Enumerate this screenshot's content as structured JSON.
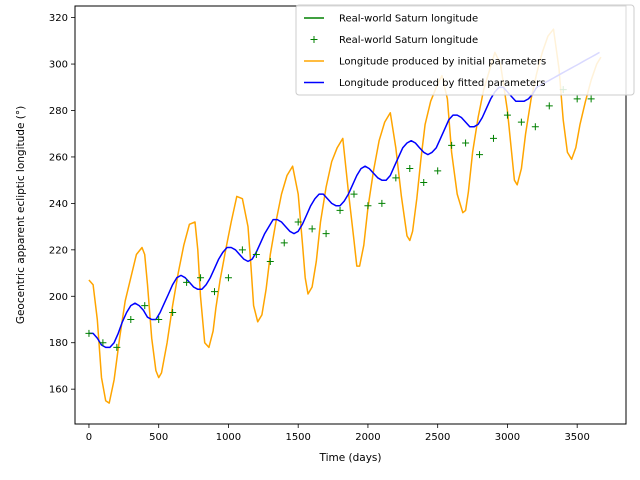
{
  "chart_data": {
    "type": "line",
    "xlabel": "Time (days)",
    "ylabel": "Geocentric apparent ecliptic longitude (°)",
    "xlim": [
      -100,
      3850
    ],
    "ylim": [
      145,
      325
    ],
    "xticks": [
      0,
      500,
      1000,
      1500,
      2000,
      2500,
      3000,
      3500
    ],
    "yticks": [
      160,
      180,
      200,
      220,
      240,
      260,
      280,
      300,
      320
    ],
    "grid": false,
    "legend_position": "upper-right",
    "legend": [
      {
        "label": "Real-world Saturn longitude",
        "style": "line",
        "color": "#008000"
      },
      {
        "label": "Real-world Saturn longitude",
        "style": "plus",
        "color": "#008000"
      },
      {
        "label": "Longitude produced by initial parameters",
        "style": "line",
        "color": "#ffa500"
      },
      {
        "label": "Longitude produced by fitted parameters",
        "style": "line",
        "color": "#0000ff"
      }
    ],
    "series": [
      {
        "name": "Real-world Saturn longitude",
        "marker": "plus",
        "color": "#008000",
        "x": [
          0,
          100,
          200,
          300,
          400,
          500,
          600,
          700,
          800,
          900,
          1000,
          1100,
          1200,
          1300,
          1400,
          1500,
          1600,
          1700,
          1800,
          1900,
          2000,
          2100,
          2200,
          2300,
          2400,
          2500,
          2600,
          2700,
          2800,
          2900,
          3000,
          3100,
          3200,
          3300,
          3400,
          3500,
          3600
        ],
        "y": [
          184,
          180,
          178,
          190,
          196,
          190,
          193,
          206,
          208,
          202,
          208,
          220,
          218,
          215,
          223,
          232,
          229,
          227,
          237,
          244,
          239,
          240,
          251,
          255,
          249,
          254,
          265,
          266,
          261,
          268,
          278,
          275,
          273,
          282,
          289,
          285,
          285
        ]
      },
      {
        "name": "Longitude produced by initial parameters",
        "color": "#ffa500",
        "x": [
          0,
          30,
          60,
          90,
          120,
          145,
          180,
          220,
          260,
          300,
          340,
          380,
          400,
          420,
          450,
          480,
          500,
          520,
          560,
          600,
          640,
          680,
          720,
          760,
          780,
          800,
          830,
          860,
          890,
          910,
          940,
          980,
          1020,
          1060,
          1100,
          1140,
          1160,
          1180,
          1210,
          1240,
          1270,
          1300,
          1340,
          1380,
          1420,
          1460,
          1500,
          1530,
          1550,
          1570,
          1600,
          1630,
          1660,
          1700,
          1740,
          1780,
          1820,
          1860,
          1900,
          1920,
          1940,
          1970,
          2000,
          2040,
          2080,
          2120,
          2160,
          2200,
          2240,
          2280,
          2300,
          2320,
          2350,
          2380,
          2410,
          2450,
          2490,
          2530,
          2570,
          2600,
          2640,
          2680,
          2700,
          2720,
          2750,
          2790,
          2830,
          2870,
          2910,
          2950,
          3000,
          3030,
          3050,
          3070,
          3100,
          3130,
          3170,
          3210,
          3250,
          3290,
          3330,
          3370,
          3400,
          3430,
          3460,
          3490,
          3520,
          3560,
          3600,
          3640,
          3670
        ],
        "y": [
          207,
          205,
          190,
          165,
          155,
          154,
          164,
          182,
          198,
          208,
          218,
          221,
          218,
          205,
          182,
          168,
          165,
          167,
          180,
          196,
          210,
          222,
          231,
          232,
          220,
          200,
          180,
          178,
          185,
          195,
          207,
          220,
          232,
          243,
          242,
          230,
          214,
          196,
          189,
          192,
          203,
          218,
          232,
          244,
          252,
          256,
          244,
          223,
          208,
          201,
          204,
          215,
          232,
          247,
          258,
          264,
          268,
          245,
          224,
          213,
          213,
          222,
          238,
          254,
          267,
          275,
          279,
          264,
          243,
          226,
          224,
          228,
          242,
          259,
          274,
          284,
          290,
          295,
          285,
          262,
          244,
          236,
          237,
          245,
          262,
          277,
          289,
          297,
          305,
          300,
          280,
          262,
          250,
          248,
          255,
          270,
          285,
          296,
          305,
          312,
          315,
          298,
          276,
          262,
          259,
          264,
          274,
          284,
          293,
          300,
          303
        ]
      },
      {
        "name": "Longitude produced by fitted parameters",
        "color": "#0000ff",
        "x": [
          0,
          30,
          60,
          90,
          120,
          150,
          180,
          210,
          240,
          270,
          300,
          330,
          360,
          390,
          420,
          450,
          480,
          510,
          540,
          570,
          600,
          630,
          660,
          690,
          720,
          750,
          780,
          810,
          840,
          870,
          900,
          930,
          960,
          990,
          1020,
          1050,
          1080,
          1110,
          1140,
          1170,
          1200,
          1230,
          1260,
          1290,
          1320,
          1350,
          1380,
          1410,
          1440,
          1470,
          1500,
          1530,
          1560,
          1590,
          1620,
          1650,
          1680,
          1710,
          1740,
          1770,
          1800,
          1830,
          1860,
          1890,
          1920,
          1950,
          1980,
          2010,
          2040,
          2070,
          2100,
          2130,
          2160,
          2190,
          2220,
          2250,
          2280,
          2310,
          2340,
          2370,
          2400,
          2430,
          2460,
          2490,
          2520,
          2550,
          2580,
          2610,
          2640,
          2670,
          2700,
          2730,
          2760,
          2790,
          2820,
          2850,
          2880,
          2910,
          2940,
          2970,
          3000,
          3030,
          3060,
          3090,
          3120,
          3150,
          3180,
          3210,
          3240,
          3270,
          3300,
          3330,
          3360,
          3390,
          3420,
          3450,
          3480,
          3510,
          3540,
          3570,
          3600,
          3630,
          3660
        ],
        "y": [
          184,
          184,
          182,
          179,
          178,
          178,
          180,
          184,
          189,
          193,
          196,
          197,
          196,
          194,
          191,
          190,
          190,
          193,
          197,
          201,
          205,
          208,
          209,
          208,
          206,
          204,
          203,
          203,
          205,
          208,
          212,
          216,
          219,
          221,
          221,
          220,
          218,
          216,
          215,
          216,
          219,
          223,
          227,
          230,
          233,
          233,
          232,
          230,
          228,
          227,
          228,
          231,
          235,
          239,
          242,
          244,
          244,
          242,
          240,
          239,
          239,
          241,
          244,
          248,
          252,
          255,
          256,
          255,
          253,
          251,
          250,
          250,
          252,
          256,
          260,
          264,
          266,
          267,
          266,
          264,
          262,
          261,
          262,
          264,
          268,
          272,
          276,
          278,
          278,
          277,
          275,
          273,
          273,
          274,
          277,
          281,
          285,
          288,
          290,
          290,
          288,
          286,
          284,
          284,
          284,
          285,
          287,
          290,
          291,
          292,
          293,
          294,
          295,
          296,
          297,
          298,
          299,
          300,
          301,
          302,
          303,
          304,
          305
        ]
      }
    ]
  }
}
